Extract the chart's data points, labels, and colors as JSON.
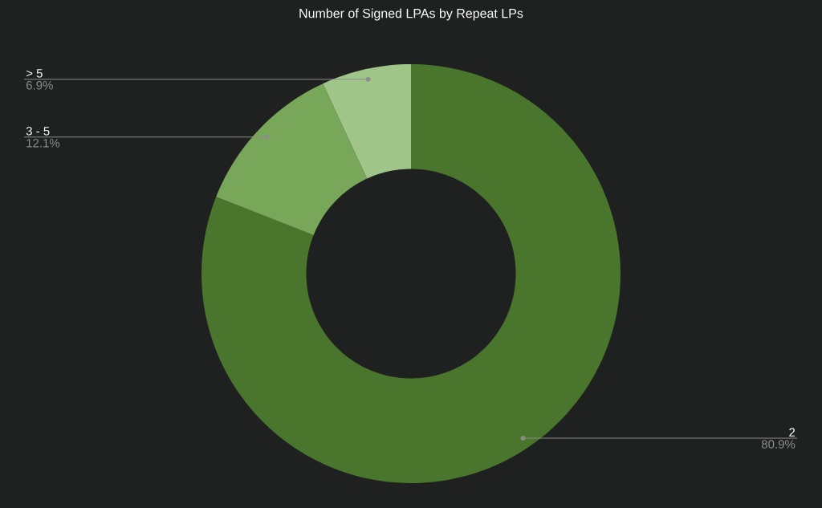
{
  "chart_data": {
    "type": "donut",
    "title": "Number of Signed LPAs by Repeat LPs",
    "categories": [
      "2",
      "3 - 5",
      "> 5"
    ],
    "values": [
      80.9,
      12.1,
      6.9
    ],
    "value_labels": [
      "80.9%",
      "12.1%",
      "6.9%"
    ],
    "colors": [
      "#4a752c",
      "#78a75a",
      "#9fc688"
    ]
  }
}
